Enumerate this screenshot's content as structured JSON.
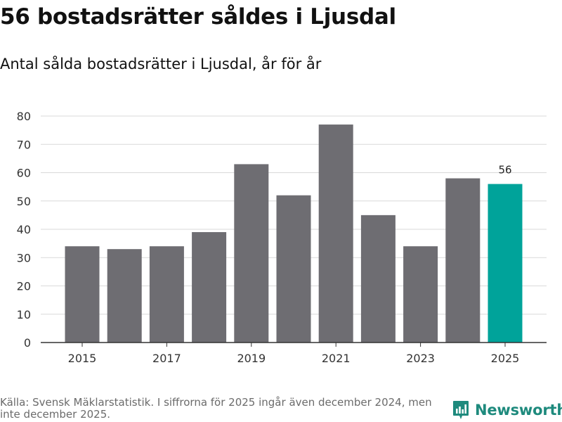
{
  "header": {
    "title": "56 bostadsrätter såldes i Ljusdal",
    "subtitle": "Antal sålda bostadsrätter i Ljusdal, år för år"
  },
  "footer": {
    "source": "Källa: Svensk Mäklarstatistik. I siffrorna för 2025 ingår även december 2024, men inte december 2025.",
    "brand": "Newsworthy",
    "brand_icon": "newsworthy-logo-icon"
  },
  "colors": {
    "bar": "#6e6d72",
    "highlight": "#00a39a",
    "grid": "#d9d9d9",
    "axis": "#333333",
    "brand": "#1e8a7d"
  },
  "chart_data": {
    "type": "bar",
    "title": "56 bostadsrätter såldes i Ljusdal",
    "subtitle": "Antal sålda bostadsrätter i Ljusdal, år för år",
    "xlabel": "",
    "ylabel": "",
    "categories": [
      "2015",
      "2016",
      "2017",
      "2018",
      "2019",
      "2020",
      "2021",
      "2022",
      "2023",
      "2024",
      "2025"
    ],
    "values": [
      34,
      33,
      34,
      39,
      63,
      52,
      77,
      45,
      34,
      58,
      56
    ],
    "x_tick_labels": [
      "2015",
      "2017",
      "2019",
      "2021",
      "2023",
      "2025"
    ],
    "ylim": [
      0,
      80
    ],
    "y_ticks": [
      0,
      10,
      20,
      30,
      40,
      50,
      60,
      70,
      80
    ],
    "grid": true,
    "highlight_category": "2025",
    "data_labels": [
      {
        "category": "2025",
        "text": "56"
      }
    ]
  }
}
